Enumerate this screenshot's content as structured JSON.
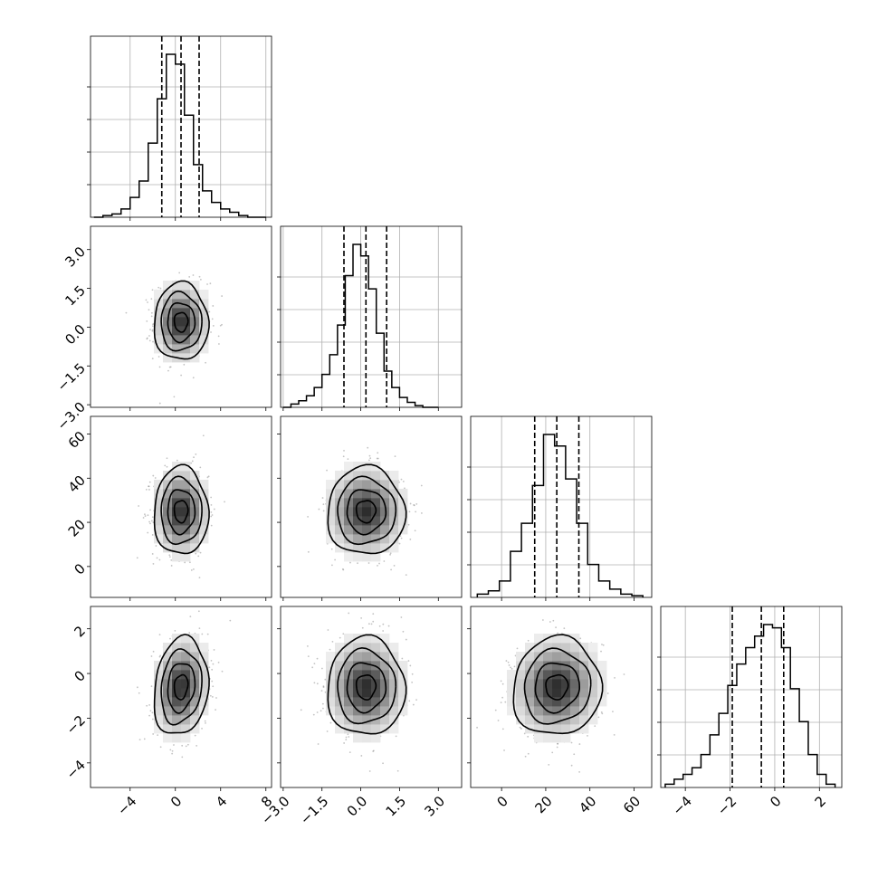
{
  "chart_data": {
    "type": "corner",
    "parameters": [
      {
        "range": [
          -7.5,
          8.5
        ],
        "ticks": [
          -4,
          0,
          4,
          8
        ],
        "tick_labels": [
          "−4",
          "0",
          "4",
          "8"
        ],
        "mean": 0.5,
        "sd": 1.2,
        "quantiles": [
          -1.2,
          0.5,
          2.1
        ],
        "hist_bins": [
          -7.2,
          -6.4,
          -5.6,
          -4.8,
          -4.0,
          -3.2,
          -2.4,
          -1.6,
          -0.8,
          0.0,
          0.8,
          1.6,
          2.4,
          3.2,
          4.0,
          4.8,
          5.6,
          6.4,
          7.2,
          8.0
        ],
        "hist_counts": [
          0.0,
          0.01,
          0.02,
          0.05,
          0.12,
          0.22,
          0.45,
          0.72,
          0.99,
          0.93,
          0.62,
          0.32,
          0.16,
          0.09,
          0.05,
          0.03,
          0.01,
          0.0
        ]
      },
      {
        "range": [
          -3.1,
          3.9
        ],
        "ticks": [
          -3.0,
          -1.5,
          0.0,
          1.5,
          3.0
        ],
        "tick_labels": [
          "−3.0",
          "−1.5",
          "0.0",
          "1.5",
          "3.0"
        ],
        "mean": 0.2,
        "sd": 0.75,
        "quantiles": [
          -0.65,
          0.2,
          1.0
        ],
        "hist_bins": [
          -3.0,
          -2.7,
          -2.4,
          -2.1,
          -1.8,
          -1.5,
          -1.2,
          -0.9,
          -0.6,
          -0.3,
          0.0,
          0.3,
          0.6,
          0.9,
          1.2,
          1.5,
          1.8,
          2.1,
          2.4,
          2.7,
          3.0
        ],
        "hist_counts": [
          0.0,
          0.02,
          0.04,
          0.07,
          0.12,
          0.2,
          0.32,
          0.5,
          0.8,
          0.99,
          0.92,
          0.72,
          0.45,
          0.22,
          0.12,
          0.06,
          0.03,
          0.01,
          0.0,
          0.0
        ]
      },
      {
        "range": [
          -14,
          68
        ],
        "ticks": [
          0,
          20,
          40,
          60
        ],
        "tick_labels": [
          "0",
          "20",
          "40",
          "60"
        ],
        "mean": 25,
        "sd": 10,
        "quantiles": [
          15,
          25,
          35
        ],
        "hist_bins": [
          -11,
          -6,
          -1,
          4,
          9,
          14,
          19,
          24,
          29,
          34,
          39,
          44,
          49,
          54,
          59,
          64
        ],
        "hist_counts": [
          0.02,
          0.04,
          0.1,
          0.28,
          0.45,
          0.68,
          0.99,
          0.92,
          0.72,
          0.45,
          0.2,
          0.1,
          0.05,
          0.02,
          0.01
        ]
      },
      {
        "range": [
          -5.1,
          3.0
        ],
        "ticks": [
          -4,
          -2,
          0,
          2
        ],
        "tick_labels": [
          "−4",
          "−2",
          "0",
          "2"
        ],
        "mean": -0.6,
        "sd": 1.1,
        "quantiles": [
          -1.9,
          -0.6,
          0.4
        ],
        "hist_bins": [
          -4.9,
          -4.5,
          -4.1,
          -3.7,
          -3.3,
          -2.9,
          -2.5,
          -2.1,
          -1.7,
          -1.3,
          -0.9,
          -0.5,
          -0.1,
          0.3,
          0.7,
          1.1,
          1.5,
          1.9,
          2.3,
          2.7
        ],
        "hist_counts": [
          0.02,
          0.05,
          0.08,
          0.12,
          0.2,
          0.32,
          0.45,
          0.62,
          0.75,
          0.85,
          0.92,
          0.99,
          0.97,
          0.85,
          0.6,
          0.4,
          0.2,
          0.08,
          0.02
        ]
      }
    ],
    "correlations": {
      "1-0": 0.0,
      "2-0": 0.0,
      "2-1": 0.0,
      "3-0": 0.15,
      "3-1": 0.0,
      "3-2": 0.05
    },
    "contour_levels_sigma": [
      0.5,
      1.0,
      1.5,
      2.0
    ],
    "grid": true,
    "legend": "none"
  }
}
